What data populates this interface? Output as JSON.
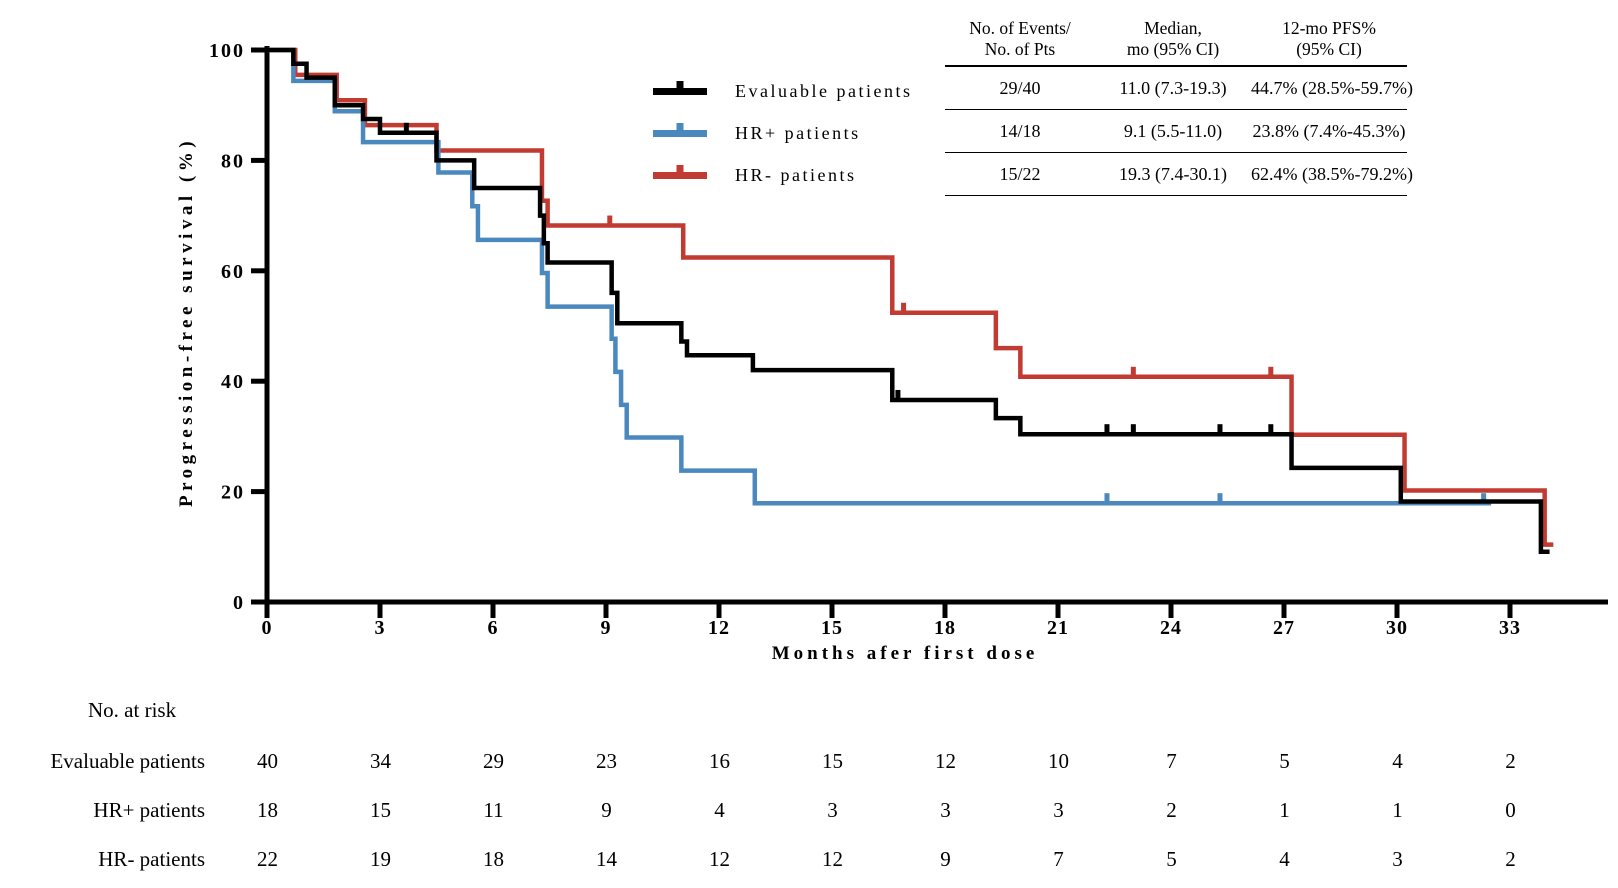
{
  "figure": {
    "y_axis_label": "Progression-free survival (%)",
    "x_axis_label": "Months afer first dose"
  },
  "legend": {
    "items": [
      {
        "label": "Evaluable patients",
        "color": "#000000"
      },
      {
        "label": "HR+ patients",
        "color": "#4A88BE"
      },
      {
        "label": "HR- patients",
        "color": "#C23B32"
      }
    ]
  },
  "summary_table": {
    "headers": [
      {
        "line1": "No. of Events/",
        "line2": "No. of Pts"
      },
      {
        "line1": "Median,",
        "line2": "mo (95% CI)"
      },
      {
        "line1": "12-mo PFS%",
        "line2": "(95% CI)"
      }
    ],
    "rows": [
      {
        "events": "29/40",
        "median": "11.0 (7.3-19.3)",
        "pfs12": "44.7% (28.5%-59.7%)"
      },
      {
        "events": "14/18",
        "median": "9.1 (5.5-11.0)",
        "pfs12": "23.8% (7.4%-45.3%)"
      },
      {
        "events": "15/22",
        "median": "19.3 (7.4-30.1)",
        "pfs12": "62.4% (38.5%-79.2%)"
      }
    ]
  },
  "at_risk": {
    "title": "No. at risk",
    "months": [
      0,
      3,
      6,
      9,
      12,
      15,
      18,
      21,
      24,
      27,
      30,
      33
    ],
    "rows": [
      {
        "label": "Evaluable patients",
        "values": [
          40,
          34,
          29,
          23,
          16,
          15,
          12,
          10,
          7,
          5,
          4,
          2
        ]
      },
      {
        "label": "HR+ patients",
        "values": [
          18,
          15,
          11,
          9,
          4,
          3,
          3,
          3,
          2,
          1,
          1,
          0
        ]
      },
      {
        "label": "HR- patients",
        "values": [
          22,
          19,
          18,
          14,
          12,
          12,
          9,
          7,
          5,
          4,
          3,
          2
        ]
      }
    ]
  },
  "chart_data": {
    "type": "line",
    "subtype": "kaplan-meier-step",
    "title": "",
    "xlabel": "Months afer first dose",
    "ylabel": "Progression-free survival (%)",
    "xlim": [
      0,
      35.6
    ],
    "ylim": [
      0,
      100
    ],
    "xticks": [
      0,
      3,
      6,
      9,
      12,
      15,
      18,
      21,
      24,
      27,
      30,
      33
    ],
    "yticks": [
      0,
      20,
      40,
      60,
      80,
      100
    ],
    "grid": false,
    "legend_position": "upper-center-left",
    "series": [
      {
        "name": "Evaluable patients",
        "color": "#000000",
        "steps": [
          [
            0,
            100
          ],
          [
            0.7,
            97.5
          ],
          [
            1.05,
            95
          ],
          [
            1.8,
            90
          ],
          [
            2.55,
            87.5
          ],
          [
            3.0,
            85
          ],
          [
            4.5,
            80
          ],
          [
            5.5,
            75
          ],
          [
            7.25,
            70
          ],
          [
            7.35,
            65
          ],
          [
            7.45,
            61.5
          ],
          [
            9.15,
            56
          ],
          [
            9.3,
            50.5
          ],
          [
            11.0,
            47.2
          ],
          [
            11.15,
            44.7
          ],
          [
            12.9,
            42.0
          ],
          [
            16.6,
            36.6
          ],
          [
            19.35,
            33.3
          ],
          [
            20.0,
            30.4
          ],
          [
            27.2,
            24.3
          ],
          [
            30.1,
            18.2
          ],
          [
            33.82,
            9.1
          ]
        ],
        "end_x": 34.05,
        "censors": [
          [
            3.7,
            85
          ],
          [
            16.75,
            36.6
          ],
          [
            22.3,
            30.4
          ],
          [
            23.0,
            30.4
          ],
          [
            25.3,
            30.4
          ],
          [
            26.65,
            30.4
          ]
        ]
      },
      {
        "name": "HR+ patients",
        "color": "#4A88BE",
        "steps": [
          [
            0,
            100
          ],
          [
            0.7,
            94.4
          ],
          [
            1.8,
            88.9
          ],
          [
            2.55,
            83.3
          ],
          [
            4.55,
            77.8
          ],
          [
            5.45,
            71.7
          ],
          [
            5.6,
            65.6
          ],
          [
            7.3,
            59.6
          ],
          [
            7.45,
            53.5
          ],
          [
            9.15,
            47.7
          ],
          [
            9.25,
            41.7
          ],
          [
            9.4,
            35.7
          ],
          [
            9.55,
            29.8
          ],
          [
            11.0,
            23.8
          ],
          [
            12.95,
            17.9
          ]
        ],
        "end_x": 32.5,
        "censors": [
          [
            22.3,
            17.9
          ],
          [
            25.3,
            17.9
          ],
          [
            32.3,
            17.9
          ]
        ]
      },
      {
        "name": "HR- patients",
        "color": "#C23B32",
        "steps": [
          [
            0,
            100
          ],
          [
            0.75,
            95.5
          ],
          [
            1.85,
            90.9
          ],
          [
            2.6,
            86.4
          ],
          [
            4.5,
            81.8
          ],
          [
            7.3,
            72.7
          ],
          [
            7.45,
            68.2
          ],
          [
            11.05,
            62.4
          ],
          [
            16.6,
            52.4
          ],
          [
            19.35,
            46.0
          ],
          [
            20.0,
            40.8
          ],
          [
            27.2,
            30.3
          ],
          [
            30.2,
            20.2
          ],
          [
            33.92,
            10.4
          ]
        ],
        "end_x": 34.15,
        "censors": [
          [
            9.1,
            68.2
          ],
          [
            16.9,
            52.4
          ],
          [
            23.0,
            40.8
          ],
          [
            26.65,
            40.8
          ]
        ]
      }
    ]
  }
}
